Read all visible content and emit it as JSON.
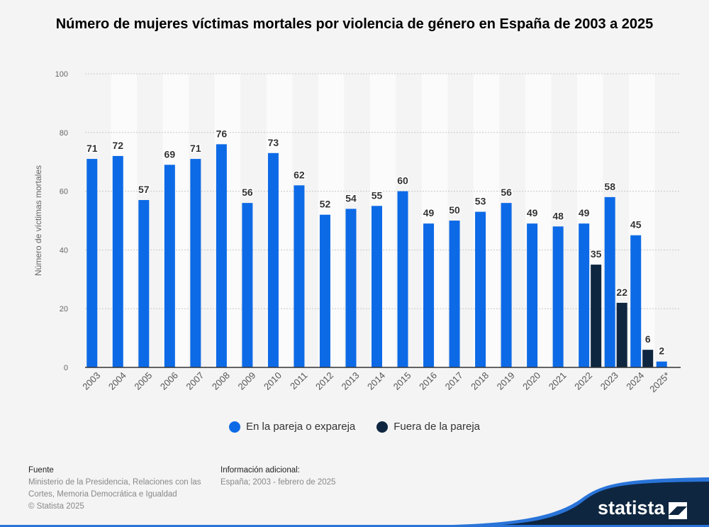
{
  "title": "Número de mujeres víctimas mortales por violencia de género en España de 2003 a 2025",
  "chart_data": {
    "type": "bar",
    "title": "Número de mujeres víctimas mortales por violencia de género en España de 2003 a 2025",
    "ylabel": "Número de víctimas mortales",
    "xlabel": "",
    "ylim": [
      0,
      100
    ],
    "yticks": [
      0,
      20,
      40,
      60,
      80,
      100
    ],
    "grid": true,
    "legend": "bottom",
    "categories": [
      "2003",
      "2004",
      "2005",
      "2006",
      "2007",
      "2008",
      "2009",
      "2010",
      "2011",
      "2012",
      "2013",
      "2014",
      "2015",
      "2016",
      "2017",
      "2018",
      "2019",
      "2020",
      "2021",
      "2022",
      "2023",
      "2024",
      "2025*"
    ],
    "series": [
      {
        "name": "En la pareja o expareja",
        "color": "#0d6ae6",
        "values": [
          71,
          72,
          57,
          69,
          71,
          76,
          56,
          73,
          62,
          52,
          54,
          55,
          60,
          49,
          50,
          53,
          56,
          49,
          48,
          49,
          58,
          45,
          2
        ]
      },
      {
        "name": "Fuera de la pareja",
        "color": "#0e2640",
        "values": [
          null,
          null,
          null,
          null,
          null,
          null,
          null,
          null,
          null,
          null,
          null,
          null,
          null,
          null,
          null,
          null,
          null,
          null,
          null,
          35,
          22,
          6,
          null
        ]
      }
    ]
  },
  "footer": {
    "source_heading": "Fuente",
    "source_lines": [
      "Ministerio de la Presidencia, Relaciones con las",
      "Cortes, Memoria Democrática e Igualdad",
      "© Statista 2025"
    ],
    "info_heading": "Información adicional:",
    "info_text": "España; 2003 - febrero de 2025"
  },
  "brand": "statista"
}
